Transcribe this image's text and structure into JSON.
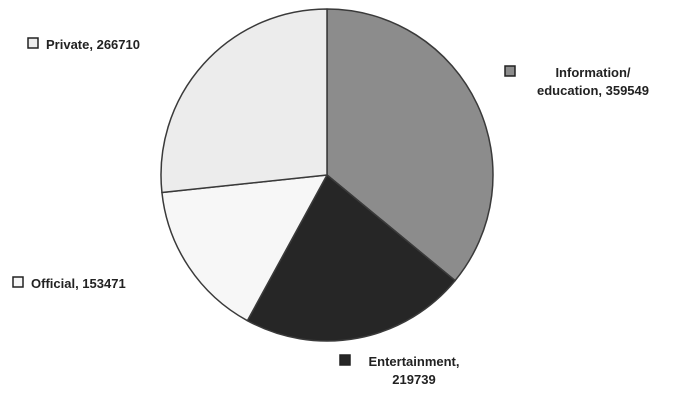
{
  "chart_data": {
    "type": "pie",
    "title": "",
    "series": [
      {
        "values": [
          359549,
          219739,
          153471,
          266710
        ]
      }
    ],
    "categories": [
      "Information/ education",
      "Entertainment",
      "Official",
      "Private"
    ],
    "slices": [
      {
        "label_lines": [
          "Information/",
          "education, 359549"
        ],
        "value": 359549,
        "color": "#8c8c8c"
      },
      {
        "label_lines": [
          "Entertainment,",
          "219739"
        ],
        "value": 219739,
        "color": "#262626"
      },
      {
        "label_lines": [
          "Official, 153471"
        ],
        "value": 153471,
        "color": "#f7f7f7"
      },
      {
        "label_lines": [
          "Private, 266710"
        ],
        "value": 266710,
        "color": "#ececec"
      }
    ],
    "start_angle_deg": 0,
    "direction": "clockwise",
    "slice_outline_color": "#3a3a3a",
    "legend": "labels next to slices with square swatches"
  }
}
